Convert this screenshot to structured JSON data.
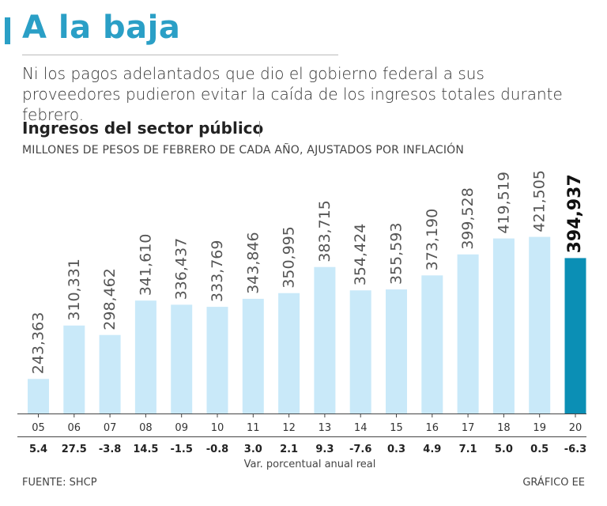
{
  "header": {
    "title": "A la baja",
    "lead": "Ni los pagos adelantados que dio el gobierno federal a sus proveedores pudieron evitar la caída de los ingresos totales durante febrero."
  },
  "chart_data": {
    "type": "bar",
    "title": "Ingresos del sector público",
    "subtitle": "MILLONES DE PESOS DE FEBRERO DE CADA AÑO, AJUSTADOS POR INFLACIÓN",
    "categories": [
      "05",
      "06",
      "07",
      "08",
      "09",
      "10",
      "11",
      "12",
      "13",
      "14",
      "15",
      "16",
      "17",
      "18",
      "19",
      "20"
    ],
    "values": [
      243363,
      310331,
      298462,
      341610,
      336437,
      333769,
      343846,
      350995,
      383715,
      354424,
      355593,
      373190,
      399528,
      419519,
      421505,
      394937
    ],
    "value_labels": [
      "243,363",
      "310,331",
      "298,462",
      "341,610",
      "336,437",
      "333,769",
      "343,846",
      "350,995",
      "383,715",
      "354,424",
      "355,593",
      "373,190",
      "399,528",
      "419,519",
      "421,505",
      "394,937"
    ],
    "change_labels": [
      "5.4",
      "27.5",
      "-3.8",
      "14.5",
      "-1.5",
      "-0.8",
      "3.0",
      "2.1",
      "9.3",
      "-7.6",
      "0.3",
      "4.9",
      "7.1",
      "5.0",
      "0.5",
      "-6.3"
    ],
    "change_caption": "Var. porcentual anual real",
    "highlight_index": 15,
    "ylim": [
      200000,
      435000
    ],
    "colors": {
      "bar": "#c9e9f9",
      "highlight": "#0b8fb5",
      "axis": "#444444",
      "label": "#555555"
    }
  },
  "footer": {
    "source": "FUENTE: SHCP",
    "credit": "GRÁFICO EE"
  }
}
